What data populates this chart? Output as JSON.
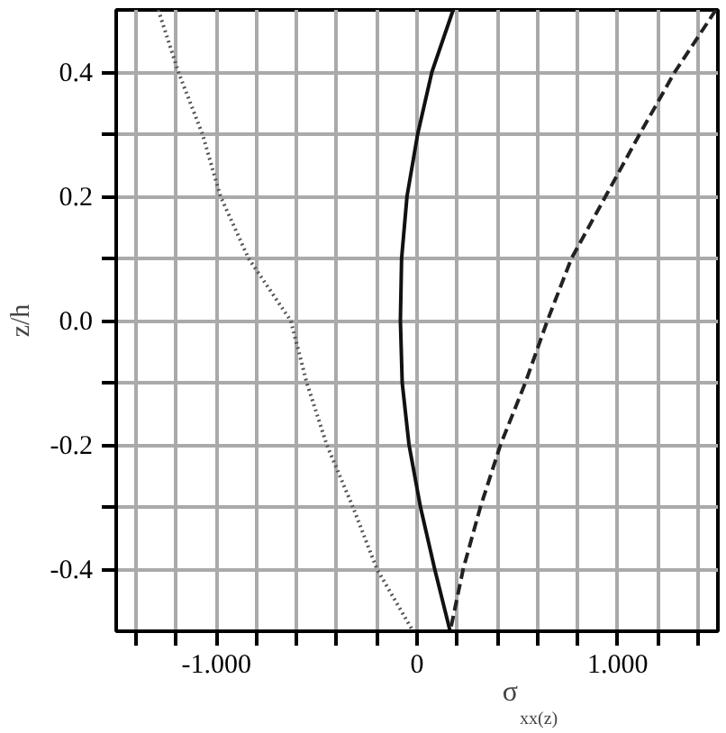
{
  "chart_data": {
    "type": "line",
    "xlabel": "σ$_{xx(z)}$",
    "ylabel": "z/h",
    "series": [
      {
        "color": "#555555",
        "line_style": "dotted",
        "x": [
          -1.29,
          -1.19,
          -1.07,
          -0.98,
          -0.84,
          -0.63,
          -0.55,
          -0.45,
          -0.32,
          -0.2,
          -0.02
        ],
        "values": [
          0.5,
          0.4,
          0.3,
          0.2,
          0.1,
          0.0,
          -0.1,
          -0.2,
          -0.3,
          -0.4,
          -0.5
        ]
      },
      {
        "color": "#111111",
        "line_style": "solid",
        "x": [
          0.18,
          0.074,
          0.003,
          -0.05,
          -0.077,
          -0.083,
          -0.074,
          -0.04,
          0.017,
          0.088,
          0.165
        ],
        "values": [
          0.5,
          0.4,
          0.3,
          0.2,
          0.1,
          0.0,
          -0.1,
          -0.2,
          -0.3,
          -0.4,
          -0.5
        ]
      },
      {
        "color": "#222222",
        "line_style": "dashed",
        "x": [
          1.49,
          1.285,
          1.11,
          0.94,
          0.77,
          0.65,
          0.54,
          0.416,
          0.316,
          0.23,
          0.165
        ],
        "values": [
          0.5,
          0.4,
          0.3,
          0.2,
          0.1,
          0.0,
          -0.1,
          -0.2,
          -0.3,
          -0.4,
          -0.5
        ]
      }
    ],
    "xlim": [
      -1.5,
      1.5
    ],
    "xticks": [
      {
        "value": -1.4,
        "label": null
      },
      {
        "value": -1.2,
        "label": null
      },
      {
        "value": -1,
        "label": "-1.000"
      },
      {
        "value": -0.8,
        "label": null
      },
      {
        "value": -0.6,
        "label": null
      },
      {
        "value": -0.4,
        "label": null
      },
      {
        "value": -0.2,
        "label": null
      },
      0,
      {
        "value": 0.2,
        "label": null
      },
      {
        "value": 0.4,
        "label": null
      },
      {
        "value": 0.6,
        "label": null
      },
      {
        "value": 0.8,
        "label": null
      },
      {
        "value": 1,
        "label": "1.000"
      },
      {
        "value": 1.2,
        "label": null
      },
      {
        "value": 1.4,
        "label": null
      }
    ],
    "ylim": [
      -0.5,
      0.5
    ],
    "yticks": [
      {
        "value": -0.4,
        "label": "-0.4"
      },
      {
        "value": -0.3,
        "label": null
      },
      {
        "value": -0.2,
        "label": "-0.2"
      },
      {
        "value": -0.1,
        "label": null
      },
      {
        "value": 0,
        "label": "0.0"
      },
      {
        "value": 0.1,
        "label": null
      },
      {
        "value": 0.2,
        "label": "0.2"
      },
      {
        "value": 0.3,
        "label": null
      },
      {
        "value": 0.4,
        "label": "0.4"
      }
    ],
    "grid": true
  }
}
